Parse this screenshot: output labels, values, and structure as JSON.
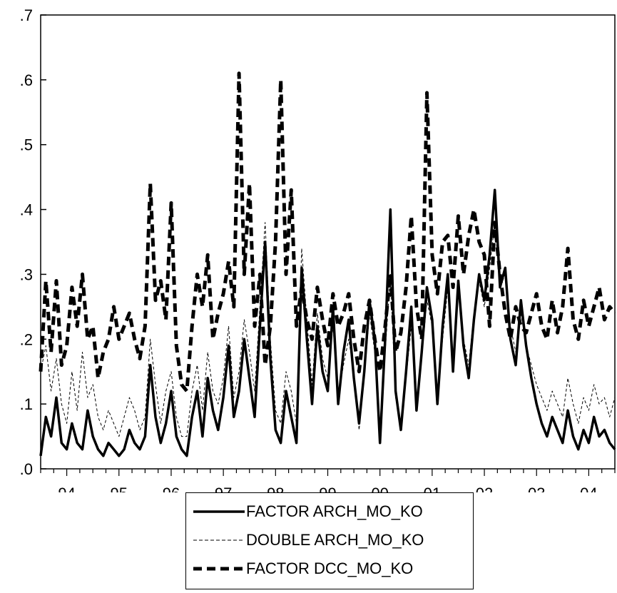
{
  "chart_data": {
    "type": "line",
    "title": "",
    "xlabel": "",
    "ylabel": "",
    "ylim": [
      0,
      0.7
    ],
    "xlim": [
      1993.5,
      2004.5
    ],
    "y_ticks": [
      ".0",
      ".1",
      ".2",
      ".3",
      ".4",
      ".5",
      ".6",
      ".7"
    ],
    "x_ticks": [
      "94",
      "95",
      "96",
      "97",
      "98",
      "99",
      "00",
      "01",
      "02",
      "03",
      "04"
    ],
    "grid": false,
    "legend_position": "bottom",
    "series": [
      {
        "name": "FACTOR ARCH_MO_KO",
        "style": "solid-thick",
        "x": [
          1993.5,
          1993.6,
          1993.7,
          1993.8,
          1993.9,
          1994.0,
          1994.1,
          1994.2,
          1994.3,
          1994.4,
          1994.5,
          1994.6,
          1994.7,
          1994.8,
          1994.9,
          1995.0,
          1995.1,
          1995.2,
          1995.3,
          1995.4,
          1995.5,
          1995.6,
          1995.7,
          1995.8,
          1995.9,
          1996.0,
          1996.1,
          1996.2,
          1996.3,
          1996.4,
          1996.5,
          1996.6,
          1996.7,
          1996.8,
          1996.9,
          1997.0,
          1997.1,
          1997.2,
          1997.3,
          1997.4,
          1997.5,
          1997.6,
          1997.7,
          1997.8,
          1997.9,
          1998.0,
          1998.1,
          1998.2,
          1998.3,
          1998.4,
          1998.5,
          1998.6,
          1998.7,
          1998.8,
          1998.9,
          1999.0,
          1999.1,
          1999.2,
          1999.3,
          1999.4,
          1999.5,
          1999.6,
          1999.7,
          1999.8,
          1999.9,
          2000.0,
          2000.1,
          2000.2,
          2000.3,
          2000.4,
          2000.5,
          2000.6,
          2000.7,
          2000.8,
          2000.9,
          2001.0,
          2001.1,
          2001.2,
          2001.3,
          2001.4,
          2001.5,
          2001.6,
          2001.7,
          2001.8,
          2001.9,
          2002.0,
          2002.1,
          2002.2,
          2002.3,
          2002.4,
          2002.5,
          2002.6,
          2002.7,
          2002.8,
          2002.9,
          2003.0,
          2003.1,
          2003.2,
          2003.3,
          2003.4,
          2003.5,
          2003.6,
          2003.7,
          2003.8,
          2003.9,
          2004.0,
          2004.1,
          2004.2,
          2004.3,
          2004.4,
          2004.5
        ],
        "values": [
          0.02,
          0.08,
          0.05,
          0.11,
          0.04,
          0.03,
          0.07,
          0.04,
          0.03,
          0.09,
          0.05,
          0.03,
          0.02,
          0.04,
          0.03,
          0.02,
          0.03,
          0.06,
          0.04,
          0.03,
          0.05,
          0.16,
          0.08,
          0.04,
          0.07,
          0.12,
          0.05,
          0.03,
          0.02,
          0.08,
          0.12,
          0.05,
          0.14,
          0.09,
          0.06,
          0.11,
          0.19,
          0.08,
          0.12,
          0.2,
          0.14,
          0.08,
          0.22,
          0.35,
          0.17,
          0.06,
          0.04,
          0.12,
          0.08,
          0.04,
          0.31,
          0.2,
          0.1,
          0.22,
          0.15,
          0.12,
          0.25,
          0.1,
          0.18,
          0.23,
          0.14,
          0.07,
          0.15,
          0.26,
          0.2,
          0.04,
          0.2,
          0.4,
          0.12,
          0.06,
          0.15,
          0.25,
          0.09,
          0.18,
          0.28,
          0.23,
          0.1,
          0.22,
          0.3,
          0.15,
          0.29,
          0.19,
          0.14,
          0.23,
          0.3,
          0.26,
          0.33,
          0.43,
          0.28,
          0.31,
          0.2,
          0.16,
          0.26,
          0.19,
          0.14,
          0.1,
          0.07,
          0.05,
          0.08,
          0.06,
          0.04,
          0.09,
          0.05,
          0.03,
          0.06,
          0.04,
          0.08,
          0.05,
          0.06,
          0.04,
          0.03
        ]
      },
      {
        "name": "DOUBLE ARCH_MO_KO",
        "style": "dashed-thin",
        "x": [
          1993.5,
          1993.6,
          1993.7,
          1993.8,
          1993.9,
          1994.0,
          1994.1,
          1994.2,
          1994.3,
          1994.4,
          1994.5,
          1994.6,
          1994.7,
          1994.8,
          1994.9,
          1995.0,
          1995.1,
          1995.2,
          1995.3,
          1995.4,
          1995.5,
          1995.6,
          1995.7,
          1995.8,
          1995.9,
          1996.0,
          1996.1,
          1996.2,
          1996.3,
          1996.4,
          1996.5,
          1996.6,
          1996.7,
          1996.8,
          1996.9,
          1997.0,
          1997.1,
          1997.2,
          1997.3,
          1997.4,
          1997.5,
          1997.6,
          1997.7,
          1997.8,
          1997.9,
          1998.0,
          1998.1,
          1998.2,
          1998.3,
          1998.4,
          1998.5,
          1998.6,
          1998.7,
          1998.8,
          1998.9,
          1999.0,
          1999.1,
          1999.2,
          1999.3,
          1999.4,
          1999.5,
          1999.6,
          1999.7,
          1999.8,
          1999.9,
          2000.0,
          2000.1,
          2000.2,
          2000.3,
          2000.4,
          2000.5,
          2000.6,
          2000.7,
          2000.8,
          2000.9,
          2001.0,
          2001.1,
          2001.2,
          2001.3,
          2001.4,
          2001.5,
          2001.6,
          2001.7,
          2001.8,
          2001.9,
          2002.0,
          2002.1,
          2002.2,
          2002.3,
          2002.4,
          2002.5,
          2002.6,
          2002.7,
          2002.8,
          2002.9,
          2003.0,
          2003.1,
          2003.2,
          2003.3,
          2003.4,
          2003.5,
          2003.6,
          2003.7,
          2003.8,
          2003.9,
          2004.0,
          2004.1,
          2004.2,
          2004.3,
          2004.4,
          2004.5
        ],
        "values": [
          0.15,
          0.19,
          0.12,
          0.17,
          0.1,
          0.07,
          0.15,
          0.09,
          0.18,
          0.11,
          0.13,
          0.08,
          0.06,
          0.09,
          0.07,
          0.05,
          0.08,
          0.11,
          0.09,
          0.06,
          0.08,
          0.2,
          0.13,
          0.07,
          0.12,
          0.15,
          0.08,
          0.05,
          0.05,
          0.12,
          0.16,
          0.09,
          0.18,
          0.12,
          0.1,
          0.14,
          0.22,
          0.11,
          0.15,
          0.23,
          0.18,
          0.12,
          0.25,
          0.38,
          0.2,
          0.09,
          0.07,
          0.15,
          0.12,
          0.07,
          0.34,
          0.23,
          0.13,
          0.24,
          0.17,
          0.14,
          0.22,
          0.11,
          0.16,
          0.2,
          0.15,
          0.06,
          0.14,
          0.24,
          0.18,
          0.05,
          0.18,
          0.3,
          0.11,
          0.07,
          0.14,
          0.22,
          0.1,
          0.17,
          0.26,
          0.22,
          0.11,
          0.2,
          0.28,
          0.15,
          0.27,
          0.2,
          0.16,
          0.24,
          0.29,
          0.25,
          0.31,
          0.38,
          0.28,
          0.3,
          0.22,
          0.18,
          0.24,
          0.19,
          0.16,
          0.13,
          0.11,
          0.09,
          0.12,
          0.1,
          0.08,
          0.14,
          0.1,
          0.07,
          0.11,
          0.09,
          0.13,
          0.1,
          0.11,
          0.08,
          0.11
        ]
      },
      {
        "name": "FACTOR DCC_MO_KO",
        "style": "dashed-thick",
        "x": [
          1993.5,
          1993.6,
          1993.7,
          1993.8,
          1993.9,
          1994.0,
          1994.1,
          1994.2,
          1994.3,
          1994.4,
          1994.5,
          1994.6,
          1994.7,
          1994.8,
          1994.9,
          1995.0,
          1995.1,
          1995.2,
          1995.3,
          1995.4,
          1995.5,
          1995.6,
          1995.7,
          1995.8,
          1995.9,
          1996.0,
          1996.1,
          1996.2,
          1996.3,
          1996.4,
          1996.5,
          1996.6,
          1996.7,
          1996.8,
          1996.9,
          1997.0,
          1997.1,
          1997.2,
          1997.3,
          1997.4,
          1997.5,
          1997.6,
          1997.7,
          1997.8,
          1997.9,
          1998.0,
          1998.1,
          1998.2,
          1998.3,
          1998.4,
          1998.5,
          1998.6,
          1998.7,
          1998.8,
          1998.9,
          1999.0,
          1999.1,
          1999.2,
          1999.3,
          1999.4,
          1999.5,
          1999.6,
          1999.7,
          1999.8,
          1999.9,
          2000.0,
          2000.1,
          2000.2,
          2000.3,
          2000.4,
          2000.5,
          2000.6,
          2000.7,
          2000.8,
          2000.9,
          2001.0,
          2001.1,
          2001.2,
          2001.3,
          2001.4,
          2001.5,
          2001.6,
          2001.7,
          2001.8,
          2001.9,
          2002.0,
          2002.1,
          2002.2,
          2002.3,
          2002.4,
          2002.5,
          2002.6,
          2002.7,
          2002.8,
          2002.9,
          2003.0,
          2003.1,
          2003.2,
          2003.3,
          2003.4,
          2003.5,
          2003.6,
          2003.7,
          2003.8,
          2003.9,
          2004.0,
          2004.1,
          2004.2,
          2004.3,
          2004.4,
          2004.5
        ],
        "values": [
          0.15,
          0.29,
          0.18,
          0.29,
          0.16,
          0.19,
          0.28,
          0.22,
          0.3,
          0.2,
          0.22,
          0.14,
          0.18,
          0.2,
          0.25,
          0.2,
          0.22,
          0.24,
          0.2,
          0.17,
          0.22,
          0.44,
          0.26,
          0.29,
          0.23,
          0.41,
          0.19,
          0.13,
          0.12,
          0.22,
          0.3,
          0.25,
          0.33,
          0.2,
          0.24,
          0.27,
          0.32,
          0.25,
          0.61,
          0.3,
          0.44,
          0.22,
          0.3,
          0.16,
          0.22,
          0.35,
          0.6,
          0.3,
          0.43,
          0.22,
          0.28,
          0.23,
          0.2,
          0.28,
          0.23,
          0.19,
          0.27,
          0.22,
          0.24,
          0.27,
          0.2,
          0.15,
          0.22,
          0.26,
          0.2,
          0.15,
          0.22,
          0.3,
          0.18,
          0.21,
          0.28,
          0.39,
          0.25,
          0.2,
          0.58,
          0.33,
          0.27,
          0.35,
          0.36,
          0.28,
          0.39,
          0.3,
          0.36,
          0.4,
          0.35,
          0.33,
          0.22,
          0.38,
          0.3,
          0.24,
          0.2,
          0.25,
          0.22,
          0.21,
          0.24,
          0.27,
          0.22,
          0.2,
          0.26,
          0.21,
          0.25,
          0.34,
          0.23,
          0.2,
          0.26,
          0.22,
          0.25,
          0.28,
          0.23,
          0.25,
          0.24
        ]
      }
    ]
  }
}
